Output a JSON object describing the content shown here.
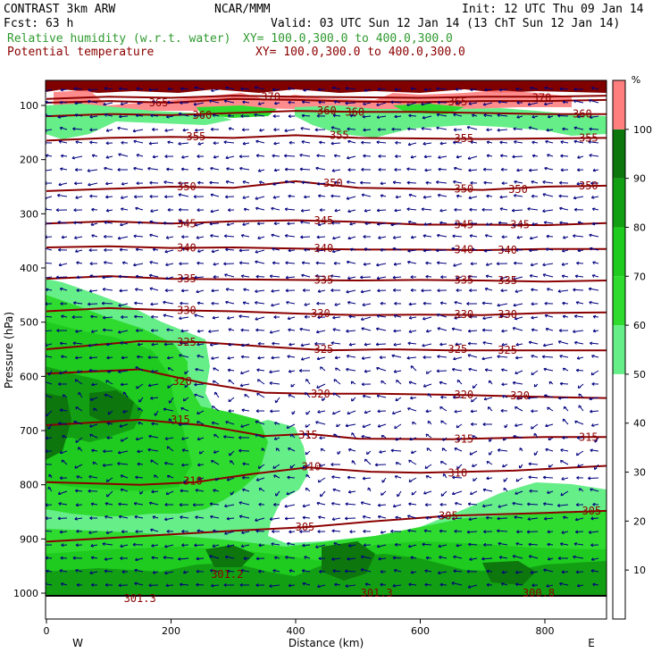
{
  "header": {
    "line1_left": "CONTRAST  3km ARW",
    "line1_mid": "NCAR/MMM",
    "line1_right": "Init: 12 UTC Thu 09 Jan 14",
    "line2_left": "Fcst:   63 h",
    "line2_right": "Valid: 03 UTC Sun 12 Jan 14 (13 ChT Sun 12 Jan 14)",
    "line3_left": "Relative humidity (w.r.t. water)",
    "line3_right": "XY= 100.0,300.0 to 400.0,300.0",
    "line4_left": "Potential temperature",
    "line4_right": "XY= 100.0,300.0 to 400.0,300.0"
  },
  "colors": {
    "rh_field": "#2f9a2f",
    "theta_field": "#8b0000",
    "wind": "#00007f"
  },
  "chart_data": {
    "type": "cross-section",
    "xlabel": "Distance (km)",
    "ylabel": "Pressure (hPa)",
    "xlim": [
      0,
      900
    ],
    "ylim": [
      1010,
      50
    ],
    "x_ticks": [
      0,
      200,
      400,
      600,
      800
    ],
    "y_ticks": [
      100,
      200,
      300,
      400,
      500,
      600,
      700,
      800,
      900,
      1000
    ],
    "endpoint_labels": {
      "west": "W",
      "east": "E"
    },
    "colorbar": {
      "unit": "%",
      "levels": [
        10,
        20,
        30,
        40,
        50,
        60,
        70,
        80,
        90,
        100
      ],
      "fill_colors": [
        {
          "from": 50,
          "to": 60,
          "color": "#66ee88"
        },
        {
          "from": 60,
          "to": 70,
          "color": "#2fdb2f"
        },
        {
          "from": 70,
          "to": 80,
          "color": "#1ecb1e"
        },
        {
          "from": 80,
          "to": 90,
          "color": "#139f13"
        },
        {
          "from": 90,
          "to": 100,
          "color": "#0d760d"
        },
        {
          "from": 100,
          "to": 110,
          "color": "#ff7f7f"
        }
      ]
    },
    "theta_contours": [
      {
        "value": 305,
        "points": [
          [
            0,
            905
          ],
          [
            150,
            895
          ],
          [
            300,
            885
          ],
          [
            420,
            878
          ],
          [
            520,
            868
          ],
          [
            650,
            857
          ],
          [
            800,
            852
          ],
          [
            900,
            848
          ]
        ],
        "labels": [
          [
            415,
            878
          ],
          [
            645,
            857
          ],
          [
            875,
            848
          ]
        ],
        "label_text": [
          "305",
          "305",
          "305"
        ]
      },
      {
        "value": 310,
        "points": [
          [
            0,
            795
          ],
          [
            150,
            800
          ],
          [
            240,
            795
          ],
          [
            330,
            780
          ],
          [
            420,
            768
          ],
          [
            520,
            776
          ],
          [
            600,
            778
          ],
          [
            750,
            774
          ],
          [
            900,
            765
          ]
        ],
        "labels": [
          [
            235,
            793
          ],
          [
            425,
            767
          ],
          [
            660,
            778
          ]
        ],
        "label_text": [
          "310",
          "310",
          "310"
        ]
      },
      {
        "value": 315,
        "points": [
          [
            0,
            690
          ],
          [
            150,
            680
          ],
          [
            250,
            690
          ],
          [
            350,
            710
          ],
          [
            420,
            706
          ],
          [
            500,
            715
          ],
          [
            650,
            716
          ],
          [
            800,
            712
          ],
          [
            900,
            712
          ]
        ],
        "labels": [
          [
            215,
            680
          ],
          [
            420,
            708
          ],
          [
            670,
            716
          ],
          [
            870,
            712
          ]
        ],
        "label_text": [
          "315",
          "315",
          "315",
          "315"
        ]
      },
      {
        "value": 320,
        "points": [
          [
            0,
            595
          ],
          [
            150,
            587
          ],
          [
            250,
            612
          ],
          [
            350,
            630
          ],
          [
            420,
            632
          ],
          [
            530,
            632
          ],
          [
            650,
            634
          ],
          [
            800,
            638
          ],
          [
            900,
            640
          ]
        ],
        "labels": [
          [
            218,
            609
          ],
          [
            440,
            632
          ],
          [
            670,
            634
          ],
          [
            760,
            636
          ]
        ],
        "label_text": [
          "320",
          "320",
          "320",
          "320"
        ]
      },
      {
        "value": 325,
        "points": [
          [
            0,
            550
          ],
          [
            150,
            535
          ],
          [
            250,
            537
          ],
          [
            350,
            545
          ],
          [
            450,
            552
          ],
          [
            550,
            550
          ],
          [
            650,
            552
          ],
          [
            800,
            552
          ],
          [
            900,
            552
          ]
        ],
        "labels": [
          [
            225,
            537
          ],
          [
            445,
            550
          ],
          [
            660,
            550
          ],
          [
            740,
            552
          ]
        ],
        "label_text": [
          "325",
          "325",
          "325",
          "325"
        ]
      },
      {
        "value": 330,
        "points": [
          [
            0,
            480
          ],
          [
            100,
            474
          ],
          [
            200,
            478
          ],
          [
            300,
            480
          ],
          [
            400,
            484
          ],
          [
            500,
            487
          ],
          [
            600,
            486
          ],
          [
            700,
            487
          ],
          [
            800,
            483
          ],
          [
            900,
            482
          ]
        ],
        "labels": [
          [
            225,
            478
          ],
          [
            440,
            484
          ],
          [
            670,
            486
          ],
          [
            740,
            486
          ]
        ],
        "label_text": [
          "330",
          "330",
          "330",
          "330"
        ]
      },
      {
        "value": 335,
        "points": [
          [
            0,
            420
          ],
          [
            100,
            415
          ],
          [
            200,
            420
          ],
          [
            300,
            421
          ],
          [
            400,
            422
          ],
          [
            500,
            423
          ],
          [
            600,
            422
          ],
          [
            700,
            423
          ],
          [
            800,
            425
          ],
          [
            900,
            423
          ]
        ],
        "labels": [
          [
            225,
            420
          ],
          [
            445,
            422
          ],
          [
            670,
            422
          ],
          [
            740,
            423
          ]
        ],
        "label_text": [
          "335",
          "335",
          "335",
          "335"
        ]
      },
      {
        "value": 340,
        "points": [
          [
            0,
            362
          ],
          [
            100,
            360
          ],
          [
            200,
            363
          ],
          [
            300,
            362
          ],
          [
            400,
            364
          ],
          [
            500,
            366
          ],
          [
            600,
            366
          ],
          [
            700,
            367
          ],
          [
            800,
            365
          ],
          [
            900,
            365
          ]
        ],
        "labels": [
          [
            225,
            363
          ],
          [
            445,
            364
          ],
          [
            670,
            366
          ],
          [
            740,
            367
          ]
        ],
        "label_text": [
          "340",
          "340",
          "340",
          "340"
        ]
      },
      {
        "value": 345,
        "points": [
          [
            0,
            318
          ],
          [
            100,
            314
          ],
          [
            200,
            318
          ],
          [
            300,
            314
          ],
          [
            400,
            312
          ],
          [
            500,
            315
          ],
          [
            600,
            320
          ],
          [
            700,
            320
          ],
          [
            800,
            321
          ],
          [
            900,
            317
          ]
        ],
        "labels": [
          [
            225,
            318
          ],
          [
            445,
            313
          ],
          [
            670,
            320
          ],
          [
            760,
            320
          ]
        ],
        "label_text": [
          "345",
          "345",
          "345",
          "345"
        ]
      },
      {
        "value": 350,
        "points": [
          [
            0,
            258
          ],
          [
            100,
            254
          ],
          [
            200,
            250
          ],
          [
            300,
            252
          ],
          [
            400,
            240
          ],
          [
            500,
            252
          ],
          [
            600,
            254
          ],
          [
            700,
            256
          ],
          [
            800,
            250
          ],
          [
            900,
            248
          ]
        ],
        "labels": [
          [
            225,
            250
          ],
          [
            460,
            243
          ],
          [
            670,
            254
          ],
          [
            757,
            255
          ],
          [
            870,
            248
          ]
        ],
        "label_text": [
          "350",
          "350",
          "350",
          "350",
          "350"
        ]
      },
      {
        "value": 355,
        "points": [
          [
            0,
            165
          ],
          [
            100,
            160
          ],
          [
            200,
            158
          ],
          [
            300,
            160
          ],
          [
            400,
            155
          ],
          [
            500,
            160
          ],
          [
            600,
            161
          ],
          [
            700,
            162
          ],
          [
            800,
            161
          ],
          [
            900,
            160
          ]
        ],
        "labels": [
          [
            240,
            158
          ],
          [
            470,
            155
          ],
          [
            670,
            161
          ],
          [
            870,
            160
          ]
        ],
        "label_text": [
          "355",
          "355",
          "355",
          "355"
        ]
      },
      {
        "value": 360,
        "points": [
          [
            0,
            120
          ],
          [
            100,
            116
          ],
          [
            200,
            118
          ],
          [
            300,
            114
          ],
          [
            400,
            110
          ],
          [
            500,
            112
          ],
          [
            600,
            112
          ],
          [
            700,
            114
          ],
          [
            800,
            116
          ],
          [
            900,
            116
          ]
        ],
        "labels": [
          [
            250,
            118
          ],
          [
            450,
            110
          ],
          [
            495,
            112
          ],
          [
            860,
            116
          ]
        ],
        "label_text": [
          "360",
          "360",
          "360",
          "360"
        ]
      },
      {
        "value": 365,
        "points": [
          [
            0,
            95
          ],
          [
            100,
            92
          ],
          [
            200,
            95
          ],
          [
            300,
            88
          ],
          [
            400,
            90
          ],
          [
            500,
            93
          ],
          [
            600,
            94
          ],
          [
            700,
            92
          ],
          [
            800,
            92
          ],
          [
            900,
            90
          ]
        ],
        "labels": [
          [
            180,
            95
          ],
          [
            660,
            93
          ]
        ],
        "label_text": [
          "365",
          "365"
        ]
      },
      {
        "value": 370,
        "points": [
          [
            0,
            88
          ],
          [
            100,
            84
          ],
          [
            200,
            86
          ],
          [
            300,
            82
          ],
          [
            400,
            84
          ],
          [
            500,
            85
          ],
          [
            600,
            86
          ],
          [
            700,
            84
          ],
          [
            800,
            84
          ],
          [
            900,
            82
          ]
        ],
        "labels": [
          [
            360,
            84
          ],
          [
            795,
            86
          ]
        ],
        "label_text": [
          "370",
          "370"
        ]
      }
    ],
    "surface_theta_labels": [
      {
        "value": "301.2",
        "x": 290,
        "p": 965
      },
      {
        "value": "301.3",
        "x": 150,
        "p": 1010
      },
      {
        "value": "301.3",
        "x": 530,
        "p": 1000
      },
      {
        "value": "300.8",
        "x": 790,
        "p": 1000
      }
    ]
  }
}
